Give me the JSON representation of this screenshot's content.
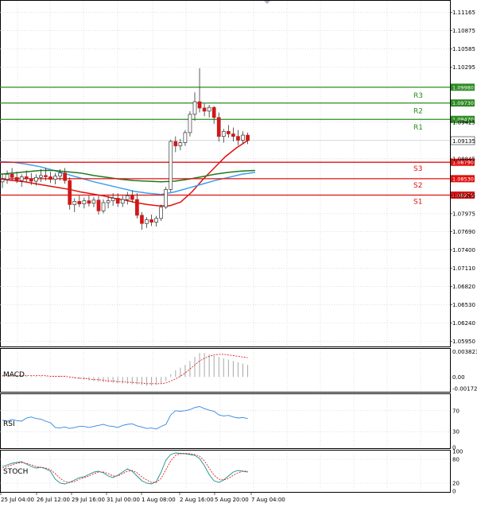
{
  "chart_data": [
    {
      "type": "candlestick",
      "panel": "price",
      "y_ticks": [
        "1.11165",
        "1.10875",
        "1.10585",
        "1.10295",
        "1.09425",
        "1.08845",
        "1.08265",
        "1.07975",
        "1.07690",
        "1.07400",
        "1.07110",
        "1.06820",
        "1.06530",
        "1.06240",
        "1.05950"
      ],
      "y_tick_values": [
        1.11165,
        1.10875,
        1.10585,
        1.10295,
        1.09425,
        1.08845,
        1.08265,
        1.07975,
        1.0769,
        1.074,
        1.0711,
        1.0682,
        1.0653,
        1.0624,
        1.0595
      ],
      "ylim": [
        1.0587,
        1.1135
      ],
      "x_ticks": [
        "25 Jul 04:00",
        "26 Jul 12:00",
        "29 Jul 16:00",
        "31 Jul 00:00",
        "1 Aug 08:00",
        "2 Aug 16:00",
        "5 Aug 20:00",
        "7 Aug 04:00"
      ],
      "current_price": "1.09135",
      "current_price_value": 1.09135,
      "levels": [
        {
          "name": "R3",
          "price": "1.09980",
          "value": 1.0998,
          "color": "#2e8b22"
        },
        {
          "name": "R2",
          "price": "1.09730",
          "value": 1.0973,
          "color": "#2e8b22"
        },
        {
          "name": "R1",
          "price": "1.09470",
          "value": 1.0947,
          "color": "#2e8b22"
        },
        {
          "name": "S3",
          "price": "1.08790",
          "value": 1.0879,
          "color": "#e01010"
        },
        {
          "name": "S2",
          "price": "1.08530",
          "value": 1.0853,
          "color": "#e01010"
        },
        {
          "name": "S1",
          "price": "1.08270",
          "value": 1.0827,
          "color": "#e01010"
        }
      ],
      "candles": [
        {
          "o": 1.0848,
          "h": 1.086,
          "l": 1.0838,
          "c": 1.0852
        },
        {
          "o": 1.0852,
          "h": 1.0866,
          "l": 1.0845,
          "c": 1.086
        },
        {
          "o": 1.086,
          "h": 1.087,
          "l": 1.085,
          "c": 1.0855
        },
        {
          "o": 1.0855,
          "h": 1.0864,
          "l": 1.0846,
          "c": 1.085
        },
        {
          "o": 1.085,
          "h": 1.086,
          "l": 1.084,
          "c": 1.0856
        },
        {
          "o": 1.0856,
          "h": 1.0866,
          "l": 1.0848,
          "c": 1.0853
        },
        {
          "o": 1.0853,
          "h": 1.0862,
          "l": 1.0843,
          "c": 1.0849
        },
        {
          "o": 1.0849,
          "h": 1.086,
          "l": 1.0842,
          "c": 1.0855
        },
        {
          "o": 1.0855,
          "h": 1.0868,
          "l": 1.0848,
          "c": 1.0858
        },
        {
          "o": 1.0858,
          "h": 1.087,
          "l": 1.085,
          "c": 1.0856
        },
        {
          "o": 1.0856,
          "h": 1.0864,
          "l": 1.0846,
          "c": 1.0852
        },
        {
          "o": 1.0852,
          "h": 1.0862,
          "l": 1.0844,
          "c": 1.0857
        },
        {
          "o": 1.0857,
          "h": 1.0868,
          "l": 1.085,
          "c": 1.0862
        },
        {
          "o": 1.0862,
          "h": 1.087,
          "l": 1.0845,
          "c": 1.085
        },
        {
          "o": 1.085,
          "h": 1.0855,
          "l": 1.0804,
          "c": 1.0812
        },
        {
          "o": 1.0812,
          "h": 1.0822,
          "l": 1.08,
          "c": 1.0817
        },
        {
          "o": 1.0817,
          "h": 1.0826,
          "l": 1.0808,
          "c": 1.0813
        },
        {
          "o": 1.0813,
          "h": 1.0823,
          "l": 1.0806,
          "c": 1.0818
        },
        {
          "o": 1.0818,
          "h": 1.0826,
          "l": 1.0809,
          "c": 1.0814
        },
        {
          "o": 1.0814,
          "h": 1.0824,
          "l": 1.0808,
          "c": 1.0819
        },
        {
          "o": 1.0819,
          "h": 1.0826,
          "l": 1.0796,
          "c": 1.0802
        },
        {
          "o": 1.0802,
          "h": 1.082,
          "l": 1.0798,
          "c": 1.0815
        },
        {
          "o": 1.0815,
          "h": 1.0826,
          "l": 1.0806,
          "c": 1.0818
        },
        {
          "o": 1.0818,
          "h": 1.083,
          "l": 1.081,
          "c": 1.0822
        },
        {
          "o": 1.0822,
          "h": 1.083,
          "l": 1.0808,
          "c": 1.0814
        },
        {
          "o": 1.0814,
          "h": 1.0826,
          "l": 1.0808,
          "c": 1.082
        },
        {
          "o": 1.082,
          "h": 1.0832,
          "l": 1.0812,
          "c": 1.0826
        },
        {
          "o": 1.0826,
          "h": 1.0834,
          "l": 1.0815,
          "c": 1.082
        },
        {
          "o": 1.082,
          "h": 1.083,
          "l": 1.079,
          "c": 1.0795
        },
        {
          "o": 1.0795,
          "h": 1.08,
          "l": 1.0772,
          "c": 1.0782
        },
        {
          "o": 1.0782,
          "h": 1.0792,
          "l": 1.0775,
          "c": 1.0788
        },
        {
          "o": 1.0788,
          "h": 1.0796,
          "l": 1.0778,
          "c": 1.0784
        },
        {
          "o": 1.0784,
          "h": 1.0794,
          "l": 1.0777,
          "c": 1.079
        },
        {
          "o": 1.079,
          "h": 1.0812,
          "l": 1.0786,
          "c": 1.0808
        },
        {
          "o": 1.0808,
          "h": 1.084,
          "l": 1.0805,
          "c": 1.0836
        },
        {
          "o": 1.0836,
          "h": 1.0915,
          "l": 1.0832,
          "c": 1.0912
        },
        {
          "o": 1.0912,
          "h": 1.092,
          "l": 1.0895,
          "c": 1.0905
        },
        {
          "o": 1.0905,
          "h": 1.0916,
          "l": 1.0898,
          "c": 1.091
        },
        {
          "o": 1.091,
          "h": 1.093,
          "l": 1.0905,
          "c": 1.0926
        },
        {
          "o": 1.0926,
          "h": 1.096,
          "l": 1.092,
          "c": 1.0955
        },
        {
          "o": 1.0955,
          "h": 1.099,
          "l": 1.0945,
          "c": 1.0975
        },
        {
          "o": 1.0975,
          "h": 1.1028,
          "l": 1.0958,
          "c": 1.0965
        },
        {
          "o": 1.0965,
          "h": 1.0972,
          "l": 1.0952,
          "c": 1.096
        },
        {
          "o": 1.096,
          "h": 1.097,
          "l": 1.095,
          "c": 1.0966
        },
        {
          "o": 1.0966,
          "h": 1.0968,
          "l": 1.094,
          "c": 1.095
        },
        {
          "o": 1.095,
          "h": 1.0958,
          "l": 1.0912,
          "c": 1.092
        },
        {
          "o": 1.092,
          "h": 1.0932,
          "l": 1.091,
          "c": 1.0928
        },
        {
          "o": 1.0928,
          "h": 1.0938,
          "l": 1.0918,
          "c": 1.0924
        },
        {
          "o": 1.0924,
          "h": 1.0934,
          "l": 1.0912,
          "c": 1.092
        },
        {
          "o": 1.092,
          "h": 1.093,
          "l": 1.0906,
          "c": 1.0914
        },
        {
          "o": 1.0914,
          "h": 1.0928,
          "l": 1.0908,
          "c": 1.0922
        },
        {
          "o": 1.0922,
          "h": 1.0926,
          "l": 1.0908,
          "c": 1.09135
        }
      ],
      "series": [
        {
          "color": "#e01010",
          "values": [
            1.0852,
            1.085,
            1.0848,
            1.0845,
            1.0842,
            1.0839,
            1.0836,
            1.0832,
            1.0829,
            1.0826,
            1.0822,
            1.0819,
            1.0815,
            1.0812,
            1.081,
            1.081,
            1.0816,
            1.0832,
            1.0852,
            1.087,
            1.0888,
            1.0902,
            1.09135
          ]
        },
        {
          "color": "#3aa0ee",
          "values": [
            1.088,
            1.0879,
            1.0876,
            1.0872,
            1.0866,
            1.086,
            1.0854,
            1.0848,
            1.0843,
            1.0838,
            1.0833,
            1.083,
            1.0828,
            1.0832,
            1.0838,
            1.0844,
            1.085,
            1.0855,
            1.086,
            1.0863
          ]
        },
        {
          "color": "#1f7a1f",
          "values": [
            1.086,
            1.0862,
            1.0864,
            1.0866,
            1.0866,
            1.0864,
            1.0862,
            1.0858,
            1.0855,
            1.0852,
            1.085,
            1.0849,
            1.0848,
            1.0849,
            1.0852,
            1.0856,
            1.086,
            1.0863,
            1.0865,
            1.0866
          ]
        }
      ]
    },
    {
      "type": "bar",
      "panel": "MACD",
      "title": "MACD",
      "y_ticks": [
        "0.003823",
        "0.00",
        "-0.001726"
      ],
      "y_tick_values": [
        0.003823,
        0.0,
        -0.001726
      ],
      "ylim": [
        -0.0021,
        0.0041
      ],
      "values": [
        0.0003,
        0.0003,
        0.0002,
        0.0002,
        0.0002,
        0.0002,
        0.0001,
        0.0001,
        0.0001,
        0.0001,
        0.0001,
        0.0001,
        0.0001,
        0.0,
        -0.0001,
        -0.0002,
        -0.0003,
        -0.0004,
        -0.0005,
        -0.0006,
        -0.0007,
        -0.0008,
        -0.0008,
        -0.0009,
        -0.0009,
        -0.001,
        -0.001,
        -0.0011,
        -0.0011,
        -0.0012,
        -0.0013,
        -0.0013,
        -0.0012,
        -0.001,
        -0.0006,
        0.0004,
        0.001,
        0.0014,
        0.0018,
        0.0024,
        0.003,
        0.0036,
        0.0036,
        0.0034,
        0.0032,
        0.003,
        0.0028,
        0.0026,
        0.0024,
        0.0022,
        0.002,
        0.0018
      ],
      "signal": [
        0.0002,
        0.0002,
        0.0002,
        0.0002,
        0.0002,
        0.0002,
        0.0002,
        0.0002,
        0.0002,
        0.0002,
        0.0001,
        0.0001,
        0.0001,
        0.0001,
        0.0,
        -0.0001,
        -0.0002,
        -0.0002,
        -0.0003,
        -0.0004,
        -0.0004,
        -0.0005,
        -0.0006,
        -0.0006,
        -0.0007,
        -0.0007,
        -0.0008,
        -0.0008,
        -0.0009,
        -0.0009,
        -0.001,
        -0.001,
        -0.001,
        -0.001,
        -0.0009,
        -0.0006,
        -0.0003,
        0.0001,
        0.0006,
        0.0012,
        0.0018,
        0.0024,
        0.0028,
        0.0031,
        0.0033,
        0.0034,
        0.0034,
        0.0033,
        0.0032,
        0.0031,
        0.003,
        0.0029
      ]
    },
    {
      "type": "line",
      "panel": "RSI",
      "title": "RSI",
      "y_ticks": [
        "70",
        "30",
        "0"
      ],
      "y_tick_values": [
        70,
        30,
        0
      ],
      "ylim": [
        0,
        100
      ],
      "values": [
        52,
        50,
        53,
        51,
        50,
        56,
        58,
        55,
        54,
        50,
        47,
        38,
        37,
        39,
        36,
        38,
        40,
        40,
        38,
        40,
        42,
        44,
        41,
        40,
        38,
        42,
        44,
        45,
        41,
        39,
        36,
        37,
        35,
        40,
        44,
        62,
        70,
        69,
        70,
        72,
        76,
        78,
        74,
        71,
        69,
        62,
        60,
        61,
        58,
        56,
        57,
        55
      ]
    },
    {
      "type": "line",
      "panel": "STOCH",
      "title": "STOCH",
      "y_ticks": [
        "100",
        "80",
        "20",
        "0"
      ],
      "y_tick_values": [
        100,
        80,
        20,
        0
      ],
      "ylim": [
        0,
        100
      ],
      "series": [
        {
          "color": "#1a8f8f",
          "values": [
            62,
            66,
            70,
            72,
            74,
            68,
            62,
            58,
            60,
            56,
            50,
            30,
            20,
            18,
            22,
            28,
            34,
            36,
            42,
            48,
            50,
            46,
            38,
            34,
            40,
            48,
            56,
            50,
            38,
            26,
            20,
            18,
            24,
            48,
            78,
            92,
            96,
            95,
            94,
            92,
            90,
            82,
            64,
            42,
            26,
            22,
            28,
            38,
            48,
            52,
            50,
            48
          ]
        },
        {
          "color": "#e02020",
          "values": [
            58,
            62,
            66,
            70,
            72,
            70,
            66,
            62,
            60,
            58,
            54,
            44,
            32,
            24,
            22,
            24,
            30,
            34,
            38,
            44,
            48,
            48,
            44,
            38,
            38,
            44,
            50,
            52,
            46,
            36,
            28,
            22,
            22,
            32,
            54,
            76,
            90,
            94,
            95,
            94,
            92,
            88,
            76,
            58,
            40,
            30,
            28,
            32,
            40,
            46,
            50,
            50
          ]
        }
      ]
    }
  ]
}
